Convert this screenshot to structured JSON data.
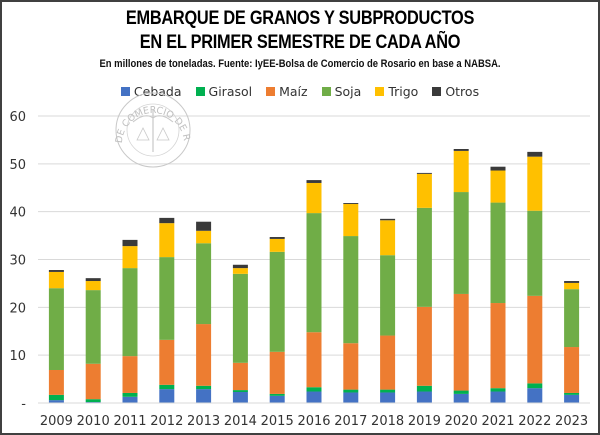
{
  "chart_data": {
    "type": "bar",
    "stacked": true,
    "title": "EMBARQUE DE GRANOS Y SUBPRODUCTOS",
    "title_line2": "EN EL PRIMER SEMESTRE DE CADA AÑO",
    "subtitle": "En millones de toneladas. Fuente: IyEE-Bolsa de Comercio de Rosario en base a NABSA.",
    "xlabel": "",
    "ylabel": "",
    "ylim": [
      0,
      60
    ],
    "yticks": [
      0,
      10,
      20,
      30,
      40,
      50,
      60
    ],
    "ytick_labels": [
      "-",
      "10",
      "20",
      "30",
      "40",
      "50",
      "60"
    ],
    "grid": true,
    "legend_position": "top",
    "watermark": "BOLSA DE COMERCIO DE ROSARIO",
    "categories": [
      "2009",
      "2010",
      "2011",
      "2012",
      "2013",
      "2014",
      "2015",
      "2016",
      "2017",
      "2018",
      "2019",
      "2020",
      "2021",
      "2022",
      "2023"
    ],
    "series": [
      {
        "name": "Cebada",
        "color": "#4472C4",
        "values": [
          0.6,
          0.2,
          1.3,
          2.9,
          2.9,
          2.3,
          1.5,
          2.4,
          2.2,
          2.2,
          2.4,
          1.9,
          2.4,
          3.1,
          1.7
        ]
      },
      {
        "name": "Girasol",
        "color": "#00B050",
        "values": [
          1.1,
          0.6,
          0.8,
          0.9,
          0.7,
          0.4,
          0.4,
          0.9,
          0.6,
          0.6,
          1.2,
          0.7,
          0.7,
          1.0,
          0.4
        ]
      },
      {
        "name": "Maíz",
        "color": "#ED7D31",
        "values": [
          5.2,
          7.4,
          7.7,
          9.4,
          12.9,
          5.7,
          8.8,
          11.5,
          9.7,
          11.3,
          16.5,
          20.2,
          17.8,
          18.3,
          9.6
        ]
      },
      {
        "name": "Soja",
        "color": "#70AD47",
        "values": [
          17.1,
          15.4,
          18.4,
          17.3,
          16.9,
          18.6,
          20.9,
          24.9,
          22.4,
          16.8,
          20.7,
          21.3,
          21.0,
          17.8,
          12.1
        ]
      },
      {
        "name": "Trigo",
        "color": "#FFC000",
        "values": [
          3.4,
          1.9,
          4.6,
          7.1,
          2.6,
          1.2,
          2.7,
          6.3,
          6.7,
          7.3,
          7.1,
          8.6,
          6.7,
          11.3,
          1.3
        ]
      },
      {
        "name": "Otros",
        "color": "#3A3A3A",
        "values": [
          0.4,
          0.6,
          1.3,
          1.1,
          1.9,
          0.7,
          0.4,
          0.6,
          0.2,
          0.3,
          0.2,
          0.4,
          0.8,
          1.0,
          0.4
        ]
      }
    ]
  }
}
